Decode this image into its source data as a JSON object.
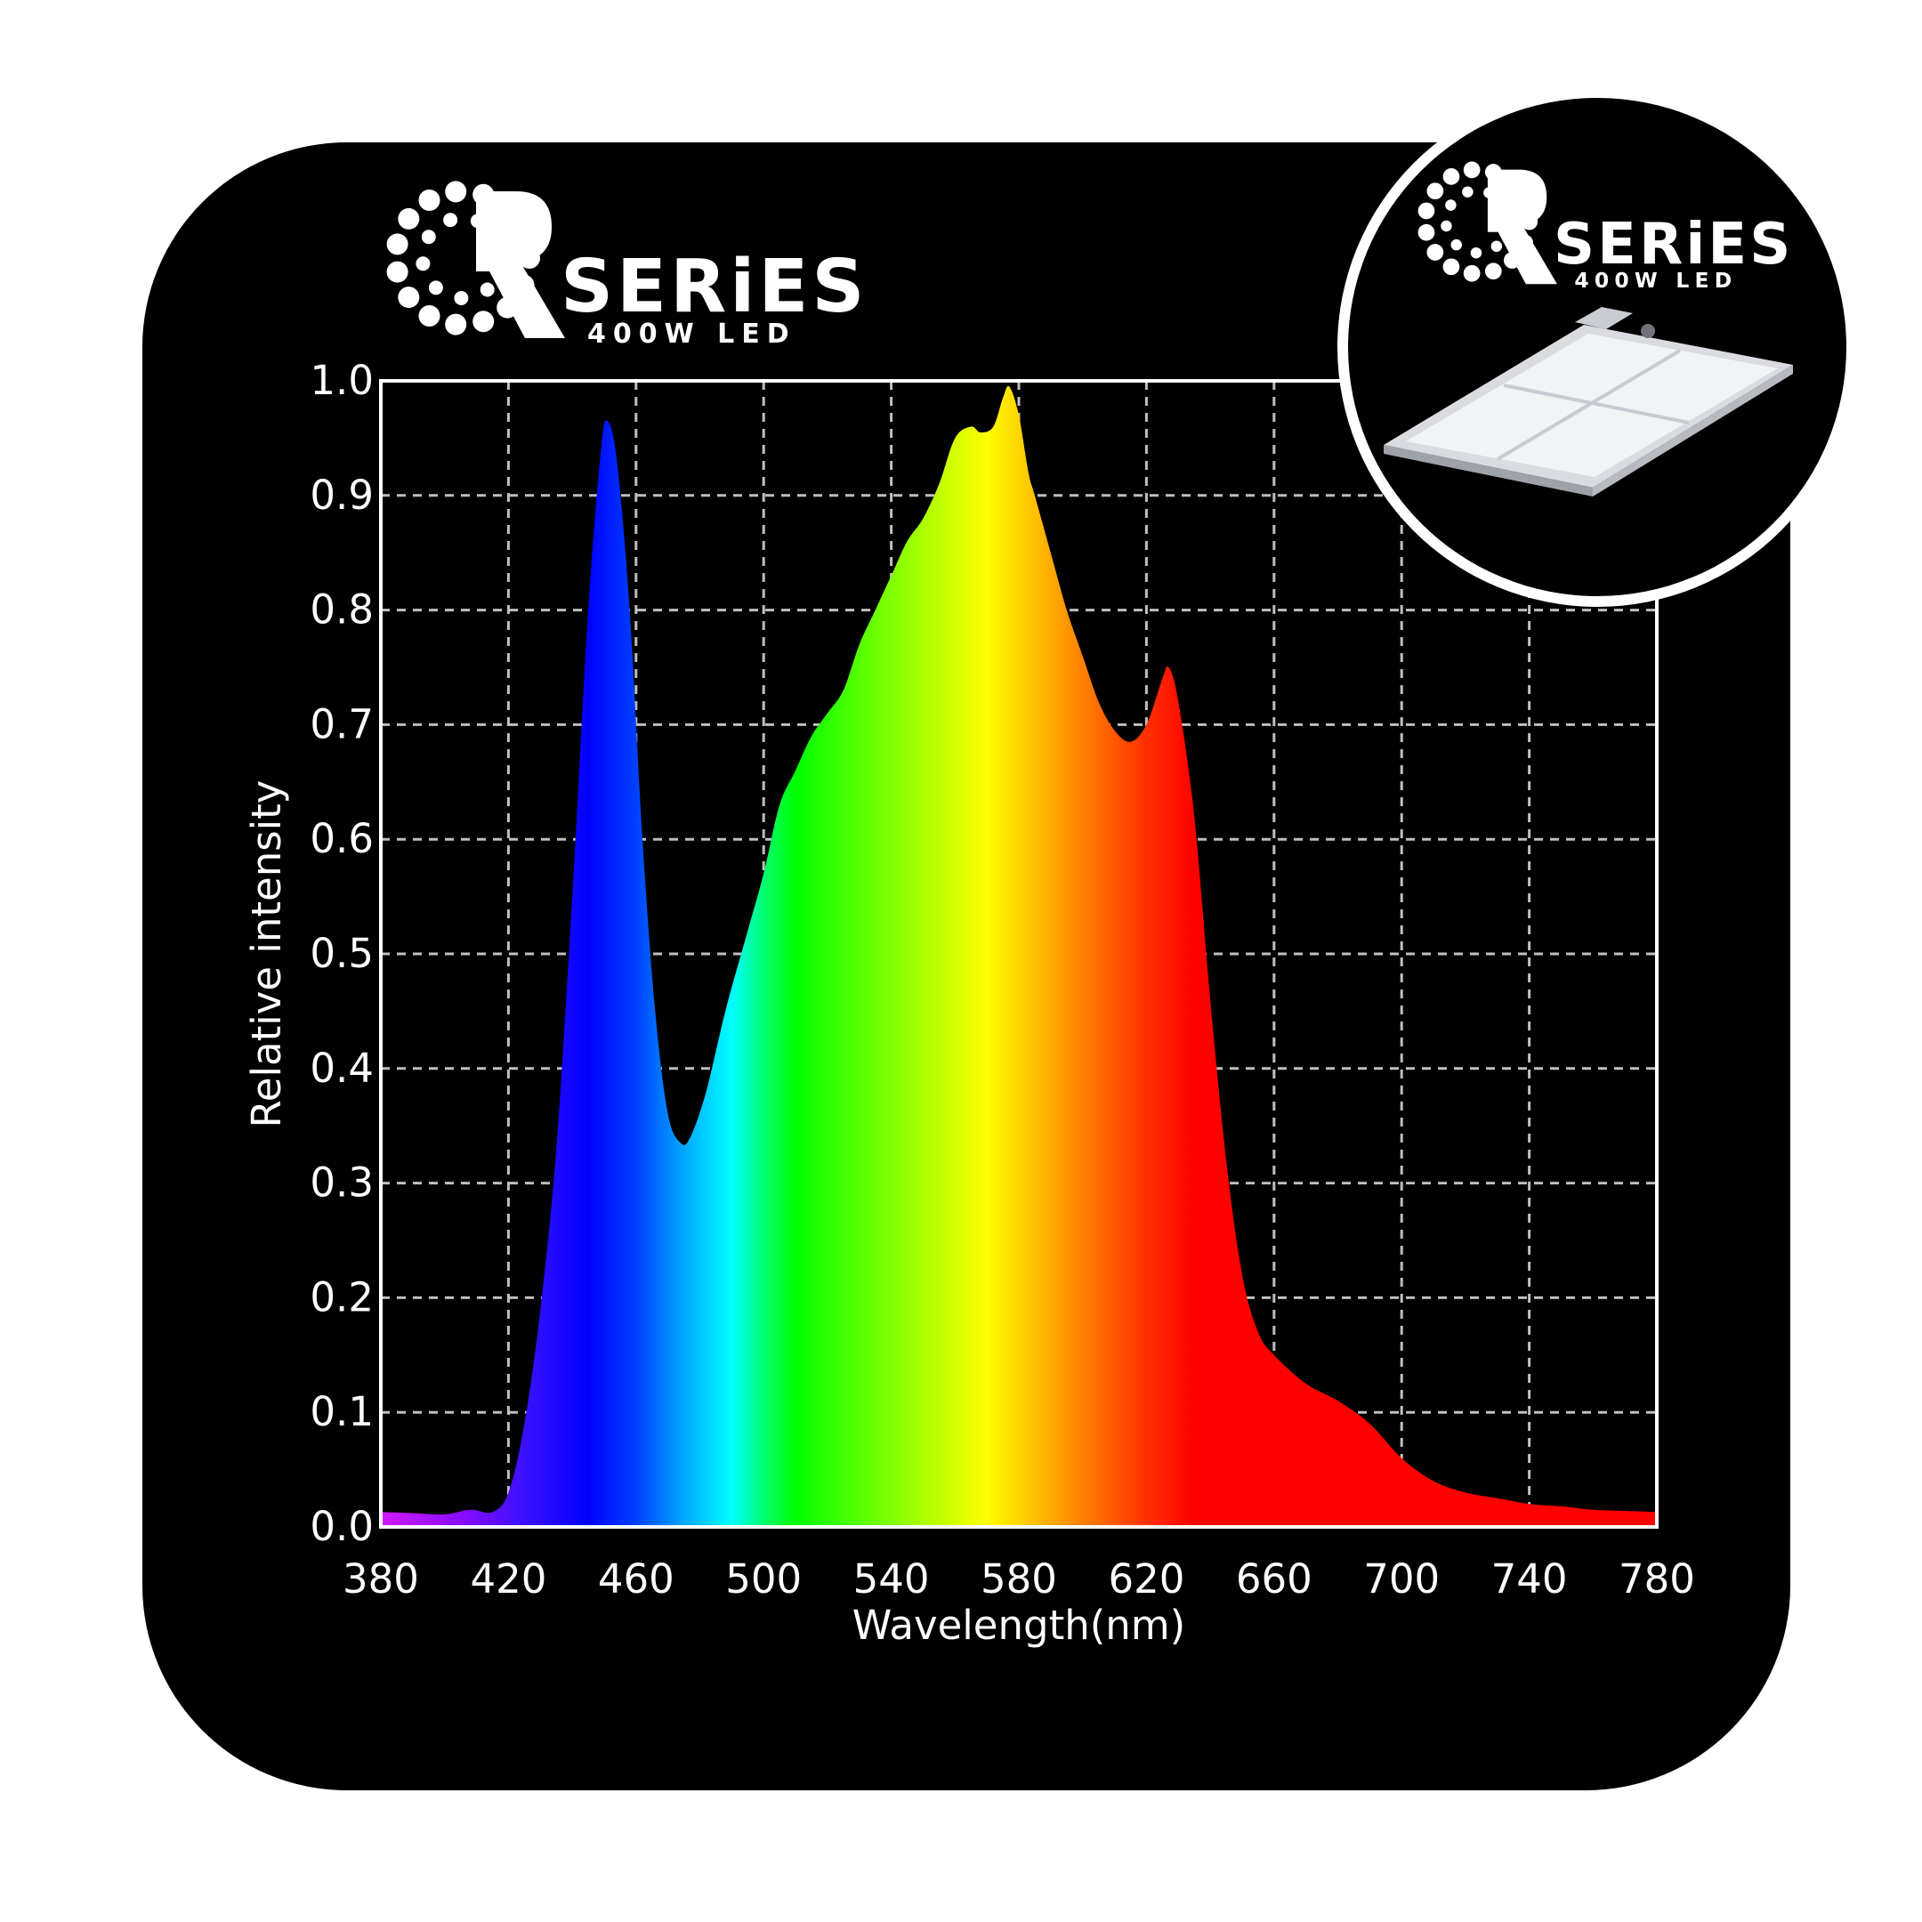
{
  "brand": {
    "series_word": "SERiES",
    "subtitle": "400W LED",
    "logo_letter": "Q"
  },
  "colors": {
    "background": "#ffffff",
    "panel": "#000000",
    "grid": "#bfbfbf",
    "axis": "#ffffff",
    "text": "#ffffff"
  },
  "chart_data": {
    "type": "area",
    "title": "",
    "xlabel": "Wavelength(nm)",
    "ylabel": "Relative intensity",
    "xlim": [
      380,
      780
    ],
    "ylim": [
      0,
      1.0
    ],
    "x_ticks": [
      380,
      420,
      460,
      500,
      540,
      580,
      620,
      660,
      700,
      740,
      780
    ],
    "x_tick_labels": [
      "380",
      "420",
      "460",
      "500",
      "540",
      "580",
      "620",
      "660",
      "700",
      "740",
      "780"
    ],
    "y_ticks": [
      0,
      0.1,
      0.2,
      0.3,
      0.4,
      0.5,
      0.6,
      0.7,
      0.8,
      0.9,
      1.0
    ],
    "y_tick_labels": [
      "0.0",
      "0.1",
      "0.2",
      "0.3",
      "0.4",
      "0.5",
      "0.6",
      "0.7",
      "0.8",
      "0.9",
      "1.0"
    ],
    "grid": true,
    "fill": "visible-spectrum gradient",
    "series": [
      {
        "points": [
          [
            380,
            0.013
          ],
          [
            390,
            0.012
          ],
          [
            400,
            0.011
          ],
          [
            408,
            0.015
          ],
          [
            415,
            0.013
          ],
          [
            420,
            0.03
          ],
          [
            425,
            0.09
          ],
          [
            430,
            0.19
          ],
          [
            435,
            0.33
          ],
          [
            440,
            0.55
          ],
          [
            445,
            0.8
          ],
          [
            449,
            0.94
          ],
          [
            451,
            0.965
          ],
          [
            454,
            0.93
          ],
          [
            458,
            0.8
          ],
          [
            462,
            0.6
          ],
          [
            466,
            0.45
          ],
          [
            470,
            0.36
          ],
          [
            474,
            0.335
          ],
          [
            477,
            0.34
          ],
          [
            482,
            0.38
          ],
          [
            488,
            0.45
          ],
          [
            495,
            0.52
          ],
          [
            500,
            0.57
          ],
          [
            505,
            0.63
          ],
          [
            510,
            0.66
          ],
          [
            515,
            0.69
          ],
          [
            520,
            0.71
          ],
          [
            525,
            0.73
          ],
          [
            530,
            0.77
          ],
          [
            535,
            0.8
          ],
          [
            540,
            0.83
          ],
          [
            545,
            0.86
          ],
          [
            550,
            0.88
          ],
          [
            555,
            0.91
          ],
          [
            560,
            0.95
          ],
          [
            565,
            0.96
          ],
          [
            568,
            0.955
          ],
          [
            572,
            0.96
          ],
          [
            575,
            0.985
          ],
          [
            577,
            0.995
          ],
          [
            580,
            0.97
          ],
          [
            583,
            0.92
          ],
          [
            585,
            0.9
          ],
          [
            590,
            0.85
          ],
          [
            595,
            0.8
          ],
          [
            600,
            0.76
          ],
          [
            605,
            0.72
          ],
          [
            610,
            0.695
          ],
          [
            615,
            0.685
          ],
          [
            620,
            0.7
          ],
          [
            625,
            0.74
          ],
          [
            627,
            0.75
          ],
          [
            630,
            0.72
          ],
          [
            635,
            0.62
          ],
          [
            640,
            0.46
          ],
          [
            645,
            0.32
          ],
          [
            650,
            0.22
          ],
          [
            655,
            0.17
          ],
          [
            660,
            0.15
          ],
          [
            670,
            0.125
          ],
          [
            680,
            0.11
          ],
          [
            690,
            0.09
          ],
          [
            700,
            0.06
          ],
          [
            710,
            0.04
          ],
          [
            720,
            0.03
          ],
          [
            730,
            0.025
          ],
          [
            740,
            0.02
          ],
          [
            750,
            0.018
          ],
          [
            760,
            0.015
          ],
          [
            770,
            0.014
          ],
          [
            780,
            0.013
          ]
        ]
      }
    ]
  }
}
